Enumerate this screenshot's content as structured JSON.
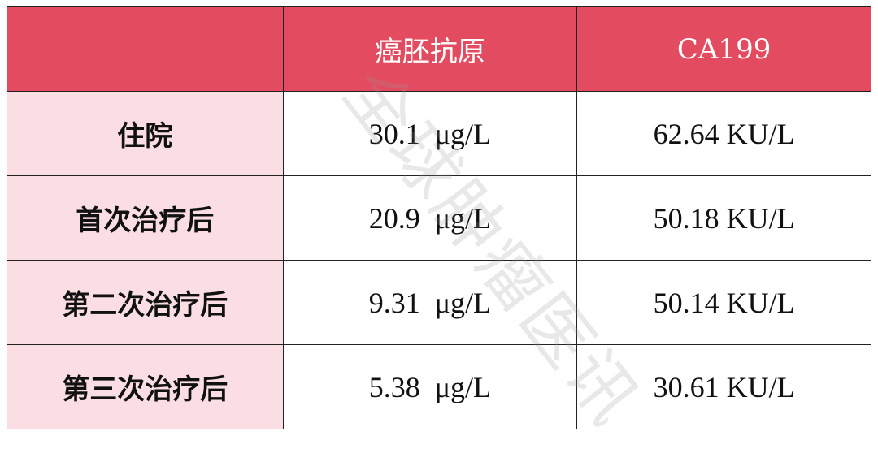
{
  "colors": {
    "header_bg": "#e34c60",
    "label_bg": "#fbdee3"
  },
  "table": {
    "headers": [
      "",
      "癌胚抗原",
      "CA199"
    ],
    "rows": [
      {
        "label": "住院",
        "cea": "30.1  μg/L",
        "ca199": "62.64 KU/L"
      },
      {
        "label": "首次治疗后",
        "cea": "20.9  μg/L",
        "ca199": "50.18 KU/L"
      },
      {
        "label": "第二次治疗后",
        "cea": "9.31  μg/L",
        "ca199": "50.14 KU/L"
      },
      {
        "label": "第三次治疗后",
        "cea": "5.38  μg/L",
        "ca199": "30.61 KU/L"
      }
    ]
  },
  "watermark": "全球肿瘤医讯"
}
